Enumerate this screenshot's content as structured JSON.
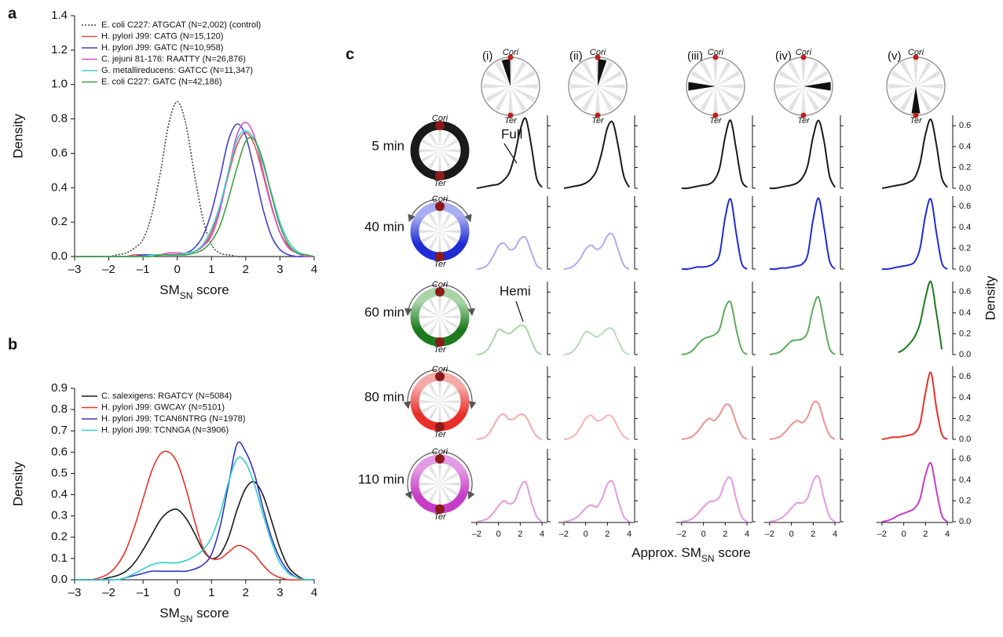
{
  "chart_data": [
    {
      "panel": "a",
      "type": "line",
      "xlabel": [
        "SM",
        "SN",
        " score"
      ],
      "ylabel": "Density",
      "xlim": [
        -3,
        4
      ],
      "ylim": [
        0,
        1.4
      ],
      "xticks": [
        {
          "value": -3,
          "label": "–3"
        },
        {
          "value": -2,
          "label": "–2"
        },
        {
          "value": -1,
          "label": "–1"
        },
        0,
        1,
        2,
        3,
        4
      ],
      "yticks": [
        {
          "value": 0,
          "label": "0.0"
        },
        0.2,
        0.4,
        0.6,
        0.8,
        {
          "value": 1,
          "label": "1.0"
        },
        1.2,
        1.4
      ],
      "x": [
        -3,
        -2.75,
        -2.5,
        -2.25,
        -2,
        -1.75,
        -1.5,
        -1.25,
        -1,
        -0.75,
        -0.5,
        -0.25,
        0,
        0.25,
        0.5,
        0.75,
        1,
        1.25,
        1.5,
        1.75,
        2,
        2.25,
        2.5,
        2.75,
        3,
        3.25,
        3.5,
        3.75,
        4
      ],
      "series": [
        {
          "name": "E. coli C227: ATGCAT (N=2,002) (control)",
          "color": "#444444",
          "linestyle": "dotted",
          "values": [
            0,
            0,
            0,
            0,
            0,
            0.01,
            0.02,
            0.05,
            0.1,
            0.24,
            0.48,
            0.77,
            0.9,
            0.77,
            0.48,
            0.22,
            0.07,
            0.02,
            0.01,
            0,
            0,
            0,
            0,
            0,
            0,
            0,
            0,
            0,
            0
          ]
        },
        {
          "name": "H. pylori J99: CATG (N=15,120)",
          "color": "#e8504a",
          "linestyle": "solid",
          "values": [
            0,
            0,
            0,
            0,
            0,
            0,
            0,
            0.01,
            0.01,
            0.01,
            0.01,
            0.02,
            0.02,
            0.02,
            0.03,
            0.06,
            0.14,
            0.29,
            0.48,
            0.65,
            0.72,
            0.65,
            0.48,
            0.29,
            0.14,
            0.06,
            0.02,
            0.01,
            0
          ]
        },
        {
          "name": "H. pylori J99: GATC (N=10,958)",
          "color": "#4040d0",
          "linestyle": "solid",
          "values": [
            0,
            0,
            0,
            0,
            0,
            0,
            0,
            0,
            0.01,
            0.01,
            0.01,
            0.01,
            0.01,
            0.02,
            0.05,
            0.12,
            0.26,
            0.46,
            0.68,
            0.77,
            0.7,
            0.5,
            0.28,
            0.12,
            0.04,
            0.01,
            0,
            0,
            0
          ]
        },
        {
          "name": "C. jejuni 81-176: RAATTY (N=26,876)",
          "color": "#d050d0",
          "linestyle": "solid",
          "values": [
            0,
            0,
            0,
            0,
            0,
            0,
            0,
            0,
            0,
            0.01,
            0.01,
            0.02,
            0.02,
            0.02,
            0.03,
            0.06,
            0.12,
            0.27,
            0.5,
            0.71,
            0.78,
            0.7,
            0.5,
            0.3,
            0.14,
            0.05,
            0.02,
            0,
            0
          ]
        },
        {
          "name": "G. metallireducens: GATCC (N=11,347)",
          "color": "#40d0d0",
          "linestyle": "solid",
          "values": [
            0,
            0,
            0,
            0,
            0,
            0,
            0,
            0,
            0,
            0.01,
            0.01,
            0.01,
            0.01,
            0.02,
            0.03,
            0.07,
            0.16,
            0.3,
            0.5,
            0.68,
            0.73,
            0.68,
            0.54,
            0.37,
            0.2,
            0.09,
            0.03,
            0.01,
            0
          ]
        },
        {
          "name": "E. coli C227: GATC (N=42,186)",
          "color": "#40a040",
          "linestyle": "solid",
          "values": [
            0,
            0,
            0,
            0,
            0,
            0,
            0,
            0,
            0,
            0,
            0.01,
            0.01,
            0.01,
            0.01,
            0.02,
            0.04,
            0.09,
            0.18,
            0.34,
            0.52,
            0.67,
            0.68,
            0.56,
            0.36,
            0.18,
            0.07,
            0.02,
            0.01,
            0
          ]
        }
      ]
    },
    {
      "panel": "b",
      "type": "line",
      "xlabel": [
        "SM",
        "SN",
        " score"
      ],
      "ylabel": "Density",
      "xlim": [
        -3,
        4
      ],
      "ylim": [
        0,
        0.9
      ],
      "xticks": [
        {
          "value": -3,
          "label": "–3"
        },
        {
          "value": -2,
          "label": "–2"
        },
        {
          "value": -1,
          "label": "–1"
        },
        0,
        1,
        2,
        3,
        4
      ],
      "yticks": [
        {
          "value": 0,
          "label": "0.0"
        },
        0.1,
        0.2,
        0.3,
        0.4,
        0.5,
        0.6,
        0.7,
        0.8,
        0.9
      ],
      "x": [
        -3,
        -2.75,
        -2.5,
        -2.25,
        -2,
        -1.75,
        -1.5,
        -1.25,
        -1,
        -0.75,
        -0.5,
        -0.25,
        0,
        0.25,
        0.5,
        0.75,
        1,
        1.25,
        1.5,
        1.75,
        2,
        2.25,
        2.5,
        2.75,
        3,
        3.25,
        3.5,
        3.75,
        4
      ],
      "series": [
        {
          "name": "C. salexigens: RGATCY (N=5084)",
          "color": "#1a1a1a",
          "linestyle": "solid",
          "values": [
            0,
            0,
            0,
            0,
            0.01,
            0.02,
            0.04,
            0.08,
            0.14,
            0.21,
            0.28,
            0.32,
            0.33,
            0.29,
            0.22,
            0.14,
            0.1,
            0.12,
            0.2,
            0.33,
            0.43,
            0.46,
            0.4,
            0.28,
            0.15,
            0.06,
            0.02,
            0,
            0
          ]
        },
        {
          "name": "H. pylori J99: GWCAY (N=5101)",
          "color": "#e8332a",
          "linestyle": "solid",
          "values": [
            0,
            0,
            0,
            0.01,
            0.03,
            0.07,
            0.14,
            0.25,
            0.38,
            0.51,
            0.59,
            0.6,
            0.55,
            0.43,
            0.28,
            0.15,
            0.1,
            0.1,
            0.13,
            0.16,
            0.15,
            0.12,
            0.07,
            0.03,
            0.01,
            0,
            0,
            0,
            0
          ]
        },
        {
          "name": "H. pylori J99: TCAN6NTRG (N=1978)",
          "color": "#3333cc",
          "linestyle": "solid",
          "values": [
            0,
            0,
            0,
            0,
            0,
            0,
            0.01,
            0.02,
            0.03,
            0.04,
            0.04,
            0.04,
            0.04,
            0.04,
            0.05,
            0.07,
            0.12,
            0.25,
            0.45,
            0.64,
            0.6,
            0.5,
            0.34,
            0.2,
            0.1,
            0.04,
            0.01,
            0,
            0
          ]
        },
        {
          "name": "H. pylori J99: TCNNGA (N=3906)",
          "color": "#33cccc",
          "linestyle": "solid",
          "values": [
            0,
            0,
            0,
            0,
            0,
            0,
            0.01,
            0.03,
            0.05,
            0.07,
            0.08,
            0.08,
            0.08,
            0.09,
            0.11,
            0.14,
            0.2,
            0.31,
            0.46,
            0.57,
            0.55,
            0.45,
            0.31,
            0.18,
            0.08,
            0.03,
            0.01,
            0,
            0
          ]
        }
      ]
    },
    {
      "panel": "c",
      "type": "small-multiples",
      "xlabel": [
        "Approx. SM",
        "SN",
        " score"
      ],
      "ylabel": "Density",
      "origin_label": "Cori",
      "terminus_label": "Ter",
      "columns": [
        "(i)",
        "(ii)",
        "(iii)",
        "(iv)",
        "(v)"
      ],
      "annotations": [
        "Full",
        "Hemi"
      ],
      "xlim": [
        -2.5,
        4.5
      ],
      "ylim": [
        0,
        0.7
      ],
      "xticks": [
        {
          "value": -2,
          "label": "–2"
        },
        0,
        2,
        4
      ],
      "yticks": [
        {
          "value": 0,
          "label": "0.0"
        },
        0.2,
        0.4,
        0.6
      ],
      "x": [
        -2,
        -1.5,
        -1,
        -0.5,
        0,
        0.5,
        1,
        1.5,
        2,
        2.5,
        3,
        3.5,
        4
      ],
      "rows": [
        {
          "label": "5 min",
          "colors": [
            "#1a1a1a",
            "#1a1a1a",
            "#1a1a1a",
            "#1a1a1a",
            "#1a1a1a"
          ],
          "values": [
            [
              0,
              0.01,
              0.02,
              0.03,
              0.04,
              0.08,
              0.15,
              0.32,
              0.56,
              0.67,
              0.42,
              0.1,
              0.01
            ],
            [
              0,
              0.01,
              0.02,
              0.03,
              0.05,
              0.09,
              0.17,
              0.35,
              0.58,
              0.63,
              0.4,
              0.12,
              0.01
            ],
            [
              0,
              0,
              0.01,
              0.02,
              0.03,
              0.04,
              0.08,
              0.2,
              0.5,
              0.65,
              0.38,
              0.08,
              0.01
            ],
            [
              0,
              0,
              0.01,
              0.02,
              0.03,
              0.05,
              0.1,
              0.22,
              0.5,
              0.65,
              0.45,
              0.12,
              0.01
            ],
            [
              0,
              0.01,
              0.02,
              0.03,
              0.04,
              0.06,
              0.1,
              0.24,
              0.52,
              0.66,
              0.42,
              0.1,
              0.01
            ]
          ]
        },
        {
          "label": "40 min",
          "colors": [
            "#a9aef0",
            "#a9aef0",
            "#1f2bd6",
            "#1f2bd6",
            "#1f2bd6"
          ],
          "values": [
            [
              0,
              0.01,
              0.04,
              0.12,
              0.22,
              0.25,
              0.19,
              0.2,
              0.29,
              0.3,
              0.17,
              0.04,
              0
            ],
            [
              0,
              0.01,
              0.04,
              0.1,
              0.19,
              0.23,
              0.19,
              0.22,
              0.32,
              0.33,
              0.18,
              0.04,
              0
            ],
            [
              0,
              0,
              0.01,
              0.02,
              0.02,
              0.03,
              0.06,
              0.15,
              0.5,
              0.67,
              0.35,
              0.06,
              0
            ],
            [
              0,
              0,
              0.01,
              0.01,
              0.02,
              0.03,
              0.05,
              0.14,
              0.48,
              0.68,
              0.4,
              0.08,
              0
            ],
            [
              0,
              0,
              0.01,
              0.02,
              0.03,
              0.04,
              0.07,
              0.2,
              0.52,
              0.67,
              0.35,
              0.06,
              0
            ]
          ]
        },
        {
          "label": "60 min",
          "colors": [
            "#a8d4a8",
            "#b8dcb8",
            "#5cad5c",
            "#5cad5c",
            "#1d7a1d"
          ],
          "values": [
            [
              0,
              0.01,
              0.05,
              0.14,
              0.24,
              0.22,
              0.2,
              0.24,
              0.28,
              0.26,
              0.14,
              0.03,
              0
            ],
            [
              0,
              0.01,
              0.05,
              0.13,
              0.22,
              0.2,
              0.17,
              0.2,
              0.25,
              0.24,
              0.13,
              0.03,
              0
            ],
            [
              0,
              0.01,
              0.04,
              0.1,
              0.15,
              0.17,
              0.19,
              0.25,
              0.45,
              0.5,
              0.25,
              0.05,
              0
            ],
            [
              0,
              0.01,
              0.03,
              0.08,
              0.13,
              0.14,
              0.15,
              0.22,
              0.45,
              0.55,
              0.3,
              0.06,
              0
            ],
            [
              null,
              null,
              null,
              0.02,
              0.05,
              0.1,
              0.17,
              0.3,
              0.55,
              0.7,
              0.4,
              0.05,
              null
            ]
          ]
        },
        {
          "label": "80 min",
          "colors": [
            "#f5aaa8",
            "#f5b4b2",
            "#f0928f",
            "#f0928f",
            "#e8302a"
          ],
          "values": [
            [
              0,
              0.01,
              0.04,
              0.12,
              0.21,
              0.24,
              0.19,
              0.2,
              0.24,
              0.22,
              0.12,
              0.03,
              0
            ],
            [
              0,
              0.01,
              0.04,
              0.11,
              0.2,
              0.23,
              0.18,
              0.19,
              0.23,
              0.21,
              0.11,
              0.03,
              0
            ],
            [
              0,
              0.01,
              0.03,
              0.08,
              0.15,
              0.2,
              0.18,
              0.24,
              0.33,
              0.31,
              0.16,
              0.04,
              0
            ],
            [
              0,
              0.01,
              0.03,
              0.08,
              0.14,
              0.18,
              0.16,
              0.22,
              0.35,
              0.34,
              0.17,
              0.04,
              0
            ],
            [
              0,
              0.01,
              0.02,
              0.02,
              0.03,
              0.04,
              0.06,
              0.15,
              0.45,
              0.64,
              0.3,
              0.05,
              0
            ]
          ]
        },
        {
          "label": "110 min",
          "colors": [
            "#e29ae2",
            "#e29ae2",
            "#e29ae2",
            "#e29ae2",
            "#c53dc5"
          ],
          "values": [
            [
              0,
              0.01,
              0.03,
              0.08,
              0.15,
              0.2,
              0.17,
              0.2,
              0.33,
              0.38,
              0.2,
              0.05,
              0
            ],
            [
              0,
              0.01,
              0.03,
              0.07,
              0.13,
              0.16,
              0.14,
              0.22,
              0.36,
              0.38,
              0.2,
              0.05,
              0
            ],
            [
              0,
              0.01,
              0.03,
              0.08,
              0.14,
              0.19,
              0.2,
              0.24,
              0.38,
              0.42,
              0.22,
              0.05,
              0
            ],
            [
              0,
              0.01,
              0.03,
              0.07,
              0.13,
              0.18,
              0.18,
              0.23,
              0.39,
              0.43,
              0.22,
              0.05,
              0
            ],
            [
              0,
              0.01,
              0.03,
              0.06,
              0.08,
              0.1,
              0.13,
              0.22,
              0.45,
              0.56,
              0.3,
              0.06,
              0
            ]
          ]
        }
      ]
    }
  ]
}
